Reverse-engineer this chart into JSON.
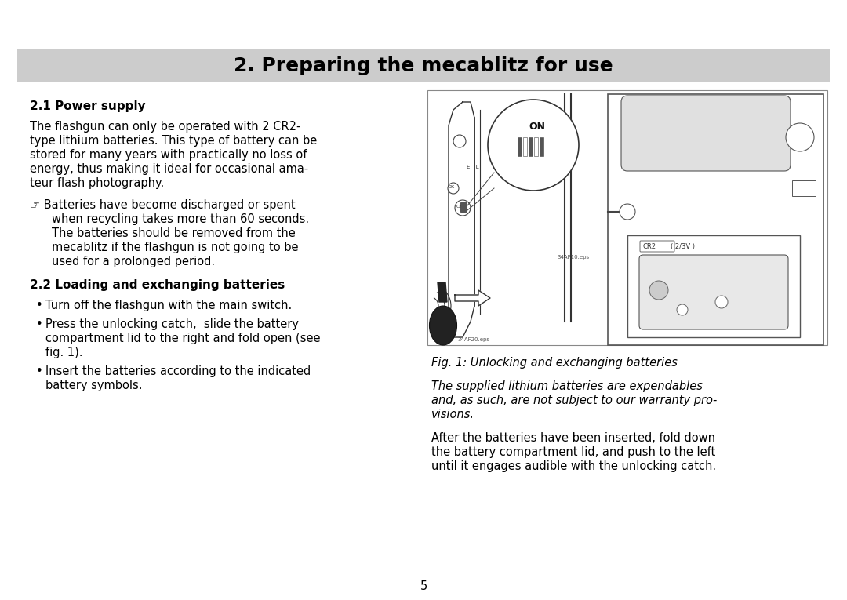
{
  "bg_color": "#ffffff",
  "header_bg_color": "#cccccc",
  "header_text": "2. Preparing the mecablitz for use",
  "header_fontsize": 18,
  "page_number": "5",
  "body_fontsize": 10.5,
  "title_fontsize": 11,
  "caption_fontsize": 10.5,
  "section1_title": "2.1 Power supply",
  "section1_lines": [
    "The flashgun can only be operated with 2 CR2-",
    "type lithium batteries. This type of battery can be",
    "stored for many years with practically no loss of",
    "energy, thus making it ideal for occasional ama-",
    "teur flash photography."
  ],
  "note_line1": "☞ Batteries have become discharged or spent",
  "note_cont": [
    "when recycling takes more than 60 seconds.",
    "The batteries should be removed from the",
    "mecablitz if the flashgun is not going to be",
    "used for a prolonged period."
  ],
  "section2_title": "2.2 Loading and exchanging batteries",
  "bullet1_lines": [
    "Turn off the flashgun with the main switch."
  ],
  "bullet2_lines": [
    "Press the unlocking catch,  slide the battery",
    "compartment lid to the right and fold open (see",
    "fig. 1)."
  ],
  "bullet3_lines": [
    "Insert the batteries according to the indicated",
    "battery symbols."
  ],
  "fig_caption": "Fig. 1: Unlocking and exchanging batteries",
  "italic_lines": [
    "The supplied lithium batteries are expendables",
    "and, as such, are not subject to our warranty pro-",
    "visions."
  ],
  "last_lines": [
    "After the batteries have been inserted, fold down",
    "the battery compartment lid, and push to the left",
    "until it engages audible with the unlocking catch."
  ]
}
